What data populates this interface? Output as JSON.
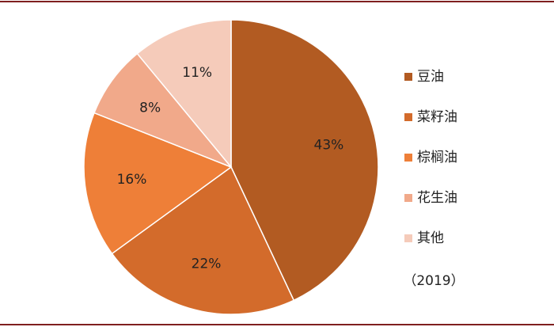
{
  "chart_data": {
    "type": "pie",
    "categories": [
      "豆油",
      "菜籽油",
      "棕榈油",
      "花生油",
      "其他"
    ],
    "values": [
      43,
      22,
      16,
      8,
      11
    ],
    "value_labels": [
      "43%",
      "22%",
      "16%",
      "8%",
      "11%"
    ],
    "colors": [
      "#b25b22",
      "#d36b2b",
      "#ee7f38",
      "#f1a98a",
      "#f5cbba"
    ],
    "legend": "right",
    "annotation": "（2019）"
  }
}
